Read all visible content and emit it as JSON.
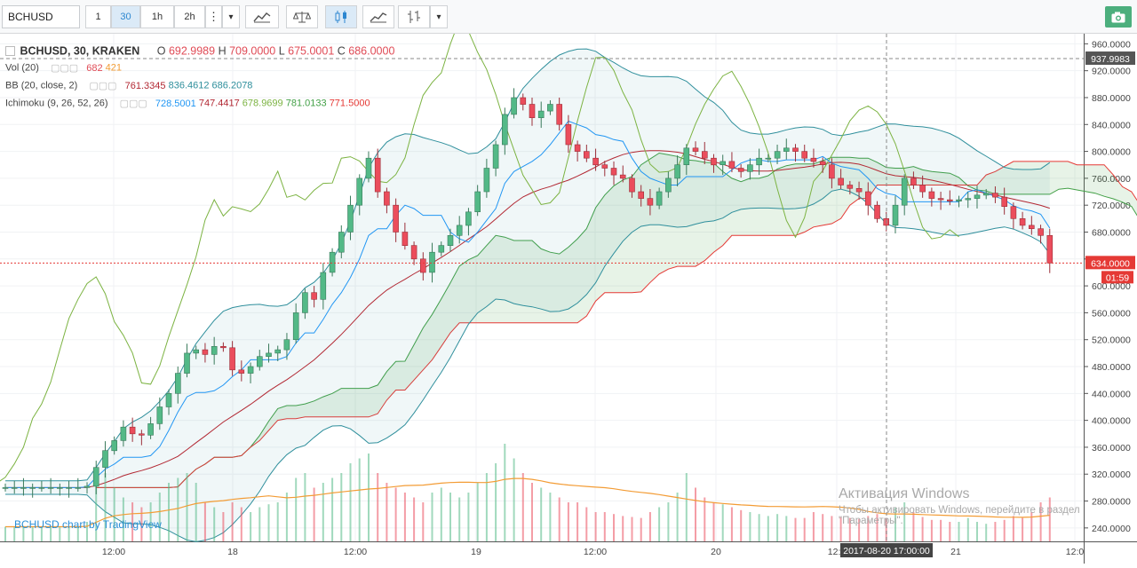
{
  "toolbar": {
    "symbol": "BCHUSD",
    "intervals": [
      "1",
      "30",
      "1h",
      "2h"
    ],
    "active_interval": "30",
    "menu_glyph": "⋮",
    "dropdown_glyph": "▾",
    "buttons": [
      "indicators-icon",
      "compare-icon",
      "candles-icon",
      "area-chart-icon",
      "bars-icon"
    ],
    "camera_icon": "camera-icon"
  },
  "legend": {
    "main": {
      "title": "BCHUSD, 30, KRAKEN",
      "o_label": "O",
      "o": "692.9989",
      "h_label": "H",
      "h": "709.0000",
      "l_label": "L",
      "l": "675.0001",
      "c_label": "C",
      "c": "686.0000"
    },
    "vol": {
      "label": "Vol (20)",
      "v1": "682",
      "v2": "421"
    },
    "bb": {
      "label": "BB (20, close, 2)",
      "v1": "761.3345",
      "v2": "836.4612",
      "v3": "686.2078"
    },
    "ichimoku": {
      "label": "Ichimoku (9, 26, 52, 26)",
      "v1": "728.5001",
      "v2": "747.4417",
      "v3": "678.9699",
      "v4": "781.0133",
      "v5": "771.5000"
    }
  },
  "price_axis": {
    "ticks": [
      "960.0000",
      "920.0000",
      "880.0000",
      "840.0000",
      "800.0000",
      "760.0000",
      "720.0000",
      "680.0000",
      "640.0000",
      "600.0000",
      "560.0000",
      "520.0000",
      "480.0000",
      "440.0000",
      "400.0000",
      "360.0000",
      "320.0000",
      "280.0000",
      "240.0000"
    ],
    "high_label": "937.9983",
    "current_label": "634.0000",
    "countdown": "01:59"
  },
  "time_axis": {
    "labels": [
      "12:00",
      "18",
      "12:00",
      "19",
      "12:00",
      "20",
      "12:0",
      "21",
      "12:0"
    ],
    "crosshair_label": "2017-08-20 17:00:00"
  },
  "credit": "BCHUSD chart by TradingView",
  "watermark": {
    "line1": "Активация Windows",
    "line2": "Чтобы активировать Windows, перейдите в раздел \"Параметры\"."
  },
  "colors": {
    "up": "#53b987",
    "down": "#eb4d5c",
    "bb": "#2f8f9c",
    "tenkan": "#2196f3",
    "kijun": "#b22833",
    "chikou": "#7cb342",
    "span_a": "#43a047",
    "span_b": "#e53935",
    "accent": "#2b8fd6"
  },
  "chart_data": {
    "type": "candlestick",
    "symbol": "BCHUSD",
    "exchange": "KRAKEN",
    "timeframe": "30",
    "x_labels": [
      "12:00",
      "18",
      "12:00",
      "19",
      "12:00",
      "20",
      "12:0",
      "21",
      "12:0"
    ],
    "ylim": [
      220,
      975
    ],
    "last_price": 634,
    "session_high": 937.9983,
    "close_path": [
      300,
      300,
      300,
      300,
      300,
      300,
      300,
      300,
      300,
      302,
      330,
      355,
      370,
      390,
      380,
      378,
      395,
      420,
      440,
      470,
      500,
      505,
      498,
      510,
      508,
      475,
      470,
      480,
      495,
      500,
      505,
      520,
      560,
      590,
      580,
      620,
      650,
      680,
      720,
      760,
      790,
      740,
      720,
      680,
      660,
      640,
      620,
      650,
      660,
      675,
      690,
      710,
      740,
      775,
      810,
      855,
      880,
      870,
      850,
      860,
      870,
      840,
      810,
      800,
      790,
      780,
      775,
      765,
      760,
      740,
      730,
      720,
      740,
      760,
      780,
      805,
      800,
      790,
      780,
      785,
      775,
      770,
      780,
      790,
      790,
      800,
      805,
      800,
      790,
      785,
      780,
      760,
      750,
      745,
      740,
      720,
      700,
      690,
      720,
      760,
      750,
      740,
      730,
      728,
      726,
      728,
      730,
      735,
      738,
      732,
      718,
      700,
      690,
      685,
      675,
      634
    ],
    "volume_profile": [
      15,
      15,
      15,
      15,
      15,
      15,
      15,
      15,
      15,
      20,
      60,
      70,
      55,
      45,
      40,
      35,
      40,
      50,
      60,
      65,
      70,
      60,
      40,
      35,
      30,
      40,
      35,
      30,
      35,
      38,
      40,
      50,
      65,
      70,
      55,
      60,
      65,
      70,
      80,
      85,
      90,
      70,
      60,
      55,
      50,
      45,
      40,
      50,
      55,
      50,
      45,
      50,
      60,
      70,
      80,
      100,
      85,
      70,
      60,
      55,
      50,
      45,
      40,
      40,
      35,
      30,
      30,
      28,
      26,
      25,
      24,
      30,
      35,
      40,
      50,
      70,
      55,
      45,
      40,
      38,
      35,
      32,
      30,
      28,
      26,
      28,
      26,
      24,
      24,
      30,
      28,
      26,
      25,
      24,
      23,
      26,
      28,
      24,
      35,
      40,
      30,
      25,
      22,
      22,
      20,
      20,
      24,
      20,
      18,
      20,
      22,
      26,
      24,
      30,
      40,
      45
    ]
  }
}
